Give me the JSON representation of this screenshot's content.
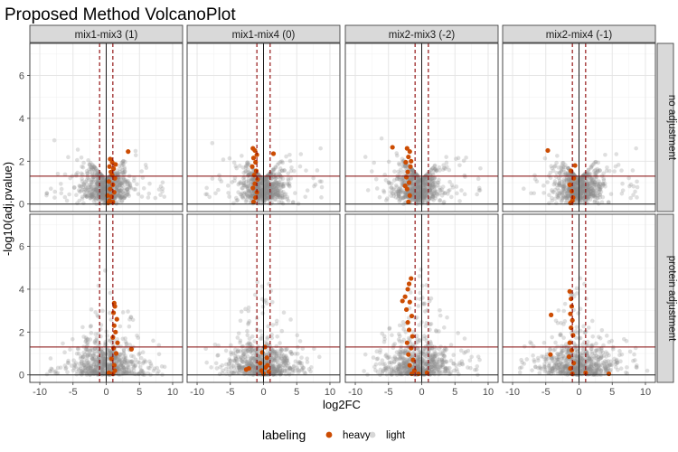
{
  "chart_data": {
    "type": "scatter",
    "title": "Proposed Method VolcanoPlot",
    "xlabel": "log2FC",
    "ylabel": "-log10(adj.pvalue)",
    "xlim": [
      -11.5,
      11.5
    ],
    "ylim": [
      -0.35,
      7.5
    ],
    "x_ticks": [
      -10,
      -5,
      0,
      5,
      10
    ],
    "y_ticks": [
      0,
      2,
      4,
      6
    ],
    "grid": true,
    "legend_position": "bottom",
    "columns": [
      "mix1-mix3 (1)",
      "mix1-mix4 (0)",
      "mix2-mix3 (-2)",
      "mix2-mix4 (-1)"
    ],
    "rows": [
      "no adjustment",
      "protein adjustment"
    ],
    "reference_lines": {
      "vertical_dashed": [
        -1,
        1
      ],
      "vertical_solid": [
        0
      ],
      "horizontal_significance": 1.3,
      "horizontal_zero": 0
    },
    "legend": {
      "title": "labeling",
      "items": [
        {
          "label": "heavy",
          "color": "#cc4c02"
        },
        {
          "label": "light",
          "color": "#a6a6a6"
        }
      ]
    },
    "series": [
      {
        "name": "heavy",
        "points": [
          [
            [
              0.3,
              0.05
            ],
            [
              0.5,
              0.15
            ],
            [
              0.8,
              0.35
            ],
            [
              1.2,
              0.55
            ],
            [
              0.6,
              0.7
            ],
            [
              1.0,
              0.9
            ],
            [
              0.4,
              1.05
            ],
            [
              1.3,
              1.2
            ],
            [
              0.9,
              1.35
            ],
            [
              0.7,
              1.5
            ],
            [
              1.1,
              1.65
            ],
            [
              0.5,
              1.75
            ],
            [
              1.4,
              1.85
            ],
            [
              0.9,
              1.95
            ],
            [
              0.6,
              2.1
            ],
            [
              3.3,
              2.45
            ],
            [
              1.0,
              0.1
            ],
            [
              0.2,
              0.4
            ]
          ],
          [
            [
              -1.5,
              0.1
            ],
            [
              -1.2,
              0.3
            ],
            [
              -1.0,
              0.55
            ],
            [
              -1.6,
              0.75
            ],
            [
              -1.3,
              0.95
            ],
            [
              -0.9,
              1.15
            ],
            [
              -1.4,
              1.35
            ],
            [
              -1.1,
              1.55
            ],
            [
              -1.7,
              1.75
            ],
            [
              -1.2,
              1.95
            ],
            [
              -1.5,
              2.15
            ],
            [
              -1.0,
              2.3
            ],
            [
              -1.3,
              2.5
            ],
            [
              -1.6,
              2.6
            ],
            [
              1.5,
              2.35
            ]
          ],
          [
            [
              -2.0,
              0.1
            ],
            [
              -1.8,
              0.4
            ],
            [
              -2.2,
              0.7
            ],
            [
              -1.9,
              1.0
            ],
            [
              -2.3,
              1.25
            ],
            [
              -2.1,
              1.5
            ],
            [
              -1.7,
              1.75
            ],
            [
              -2.4,
              1.95
            ],
            [
              -2.0,
              2.2
            ],
            [
              -1.8,
              2.45
            ],
            [
              -2.2,
              2.6
            ],
            [
              -4.4,
              2.65
            ],
            [
              -1.6,
              2.0
            ],
            [
              -2.5,
              0.85
            ]
          ],
          [
            [
              -1.3,
              0.05
            ],
            [
              -0.9,
              0.3
            ],
            [
              -1.1,
              0.6
            ],
            [
              -1.4,
              0.9
            ],
            [
              -0.8,
              1.2
            ],
            [
              -1.2,
              1.55
            ],
            [
              -0.6,
              1.8
            ],
            [
              -4.7,
              2.5
            ],
            [
              -1.0,
              0.15
            ]
          ]
        ]
      },
      {
        "name": "heavy-protein",
        "points": [
          [
            [
              1.0,
              0.05
            ],
            [
              1.3,
              0.2
            ],
            [
              1.2,
              0.45
            ],
            [
              0.8,
              0.75
            ],
            [
              1.5,
              1.0
            ],
            [
              1.1,
              1.25
            ],
            [
              1.7,
              1.5
            ],
            [
              1.0,
              1.75
            ],
            [
              1.4,
              2.0
            ],
            [
              1.2,
              2.3
            ],
            [
              1.6,
              2.6
            ],
            [
              1.1,
              2.9
            ],
            [
              1.3,
              3.2
            ],
            [
              1.2,
              3.35
            ],
            [
              3.8,
              1.2
            ],
            [
              0.4,
              0.1
            ]
          ],
          [
            [
              0.0,
              0.05
            ],
            [
              -0.3,
              0.2
            ],
            [
              0.3,
              0.35
            ],
            [
              -0.5,
              0.55
            ],
            [
              0.5,
              0.8
            ],
            [
              -0.2,
              1.05
            ],
            [
              0.2,
              1.3
            ],
            [
              0.6,
              0.45
            ],
            [
              -2.2,
              0.3
            ],
            [
              -2.6,
              0.25
            ],
            [
              0.8,
              0.15
            ]
          ],
          [
            [
              -1.5,
              0.05
            ],
            [
              -1.1,
              0.2
            ],
            [
              -1.8,
              0.45
            ],
            [
              -1.3,
              0.7
            ],
            [
              -2.0,
              0.95
            ],
            [
              -1.6,
              1.25
            ],
            [
              -2.2,
              1.5
            ],
            [
              -1.4,
              1.8
            ],
            [
              -1.9,
              2.1
            ],
            [
              -2.1,
              2.45
            ],
            [
              -1.5,
              2.75
            ],
            [
              -2.3,
              3.05
            ],
            [
              -1.8,
              3.4
            ],
            [
              -2.5,
              3.65
            ],
            [
              -2.1,
              4.0
            ],
            [
              -1.9,
              4.25
            ],
            [
              -1.6,
              4.5
            ],
            [
              -2.9,
              3.45
            ],
            [
              -0.5,
              0.05
            ],
            [
              0.8,
              0.1
            ]
          ],
          [
            [
              -1.0,
              0.05
            ],
            [
              -1.3,
              0.3
            ],
            [
              -0.8,
              0.55
            ],
            [
              -1.5,
              0.85
            ],
            [
              -1.1,
              1.15
            ],
            [
              -1.4,
              1.5
            ],
            [
              -0.9,
              1.85
            ],
            [
              -1.2,
              2.2
            ],
            [
              -1.0,
              2.55
            ],
            [
              -1.3,
              2.85
            ],
            [
              -1.1,
              3.2
            ],
            [
              -1.2,
              3.55
            ],
            [
              -1.4,
              3.9
            ],
            [
              -4.3,
              0.95
            ],
            [
              -4.2,
              2.8
            ],
            [
              4.5,
              0.05
            ],
            [
              1.0,
              0.1
            ]
          ]
        ]
      }
    ]
  }
}
